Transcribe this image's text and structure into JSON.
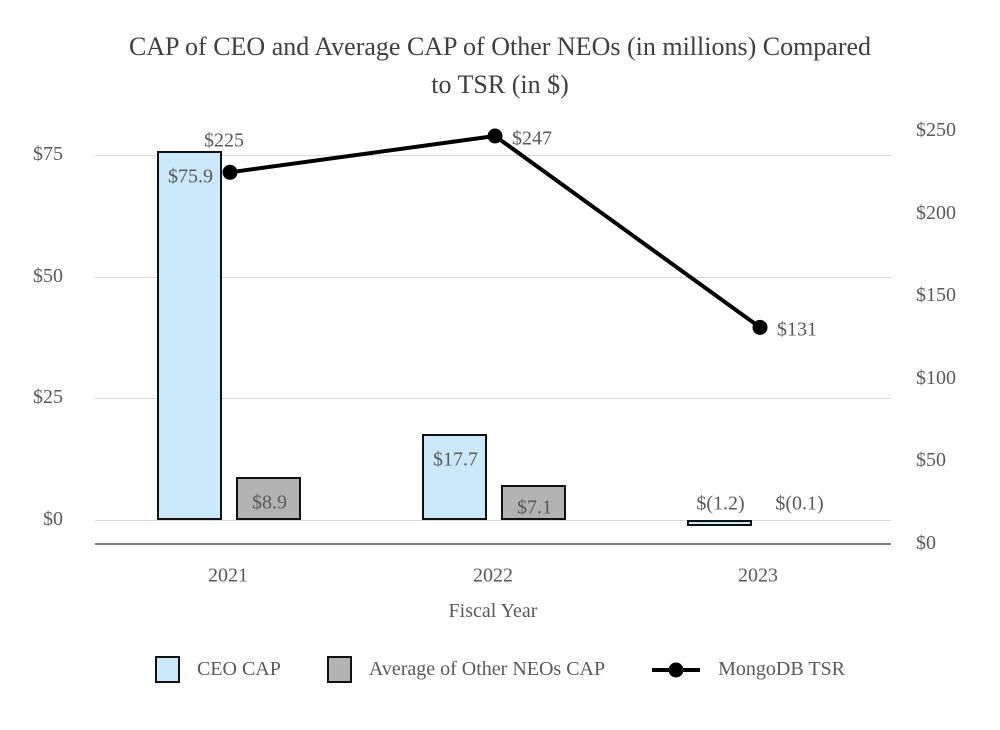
{
  "title": {
    "line1": "CAP of CEO and Average CAP of Other NEOs (in millions) Compared",
    "line2": "to TSR (in $)"
  },
  "chart_data": {
    "type": "combo-bar-line",
    "categories": [
      "2021",
      "2022",
      "2023"
    ],
    "xlabel": "Fiscal Year",
    "series": [
      {
        "name": "CEO CAP",
        "type": "bar",
        "axis": "left",
        "color": "#cce9fb",
        "values": [
          75.9,
          17.7,
          -1.2
        ],
        "labels": [
          "$75.9",
          "$17.7",
          "$(1.2)"
        ]
      },
      {
        "name": "Average of Other NEOs CAP",
        "type": "bar",
        "axis": "left",
        "color": "#b3b3b3",
        "values": [
          8.9,
          7.1,
          -0.1
        ],
        "labels": [
          "$8.9",
          "$7.1",
          "$(0.1)"
        ]
      },
      {
        "name": "MongoDB TSR",
        "type": "line",
        "axis": "right",
        "color": "#000000",
        "values": [
          225,
          247,
          131
        ],
        "labels": [
          "$225",
          "$247",
          "$131"
        ],
        "label_sides": [
          "above",
          "right",
          "right"
        ]
      }
    ],
    "left_axis": {
      "min": 0,
      "max": 75,
      "ticks": [
        {
          "label": "$0",
          "value": 0
        },
        {
          "label": "$25",
          "value": 25
        },
        {
          "label": "$50",
          "value": 50
        },
        {
          "label": "$75",
          "value": 75
        }
      ]
    },
    "right_axis": {
      "min": 0,
      "max": 250,
      "ticks": [
        {
          "label": "$0",
          "value": 0
        },
        {
          "label": "$50",
          "value": 50
        },
        {
          "label": "$100",
          "value": 100
        },
        {
          "label": "$150",
          "value": 150
        },
        {
          "label": "$200",
          "value": 200
        },
        {
          "label": "$250",
          "value": 250
        }
      ]
    },
    "grid": true,
    "legend_position": "bottom",
    "colors": {
      "grid": "#d9d9d9",
      "axis_line": "#808080",
      "text": "#595959",
      "title_text": "#3f3f3f",
      "bar_border": "#111111"
    }
  }
}
